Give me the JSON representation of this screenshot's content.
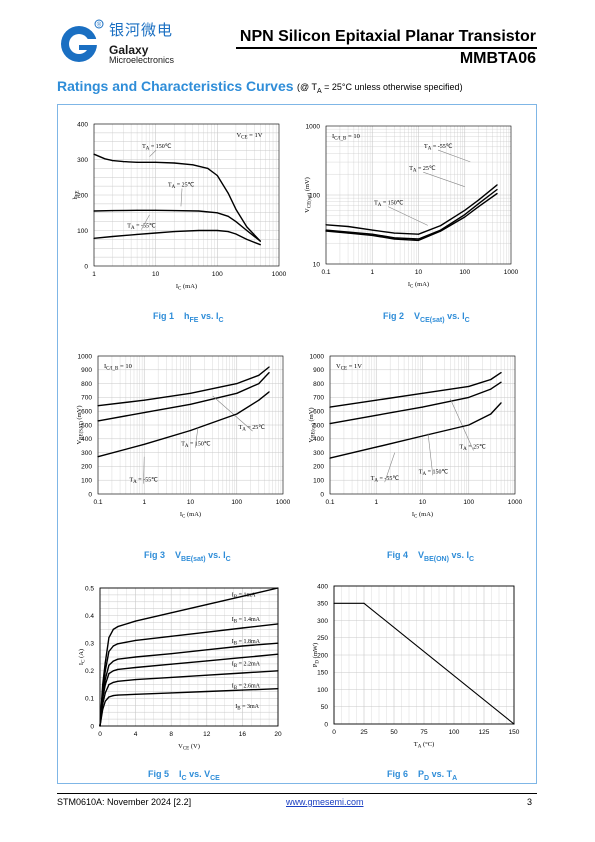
{
  "header": {
    "logo_cn": "银河微电",
    "logo_en_line1": "Galaxy",
    "logo_en_line2": "Microelectronics",
    "registered": "®",
    "title": "NPN Silicon Epitaxial Planar Transistor",
    "part_number": "MMBTA06"
  },
  "section": {
    "title": "Ratings and Characteristics Curves",
    "note_pre": "(@ T",
    "note_sub": "A",
    "note_post": " = 25°C unless otherwise specified)"
  },
  "captions": {
    "fig1": {
      "num": "Fig 1",
      "main": "h",
      "sub": "FE",
      "tail": " vs. I",
      "tail_sub": "C"
    },
    "fig2": {
      "num": "Fig 2",
      "main": "V",
      "sub": "CE(sat)",
      "tail": " vs. I",
      "tail_sub": "C"
    },
    "fig3": {
      "num": "Fig 3",
      "main": "V",
      "sub": "BE(sat)",
      "tail": " vs. I",
      "tail_sub": "C"
    },
    "fig4": {
      "num": "Fig 4",
      "main": "V",
      "sub": "BE(ON)",
      "tail": " vs. I",
      "tail_sub": "C"
    },
    "fig5": {
      "num": "Fig 5",
      "main": "I",
      "sub": "C",
      "tail": " vs. V",
      "tail_sub": "CE"
    },
    "fig6": {
      "num": "Fig 6",
      "main": "P",
      "sub": "D",
      "tail": " vs. T",
      "tail_sub": "A"
    }
  },
  "footer": {
    "doc_code": "STM0610A: November 2024 [2.2]",
    "url": "www.gmesemi.com",
    "page": "3"
  },
  "colors": {
    "accent": "#2f8dd8",
    "frame": "#7fb6e6",
    "curve": "#000000",
    "grid": "#c8c8c8"
  },
  "chart_data": [
    {
      "type": "line",
      "xscale": "log",
      "xlim": [
        1,
        1000
      ],
      "xticks": [
        "1",
        "10",
        "100",
        "1000"
      ],
      "ylim": [
        0,
        400
      ],
      "yticks": [
        "0",
        "100",
        "200",
        "300",
        "400"
      ],
      "xlabel": "I_C (mA)",
      "ylabel": "h_FE",
      "note": "V_CE = 1V",
      "grid": true,
      "series": [
        {
          "name": "T_A = 150℃",
          "x": [
            1,
            1.5,
            2,
            3,
            5,
            10,
            20,
            40,
            70,
            100,
            150,
            200,
            300,
            500
          ],
          "y": [
            315,
            302,
            297,
            294,
            292,
            292,
            290,
            285,
            275,
            255,
            205,
            160,
            110,
            70
          ]
        },
        {
          "name": "T_A = 25℃",
          "x": [
            1,
            2,
            5,
            10,
            20,
            50,
            100,
            150,
            200,
            300,
            500
          ],
          "y": [
            155,
            156,
            157,
            157,
            156,
            155,
            150,
            140,
            125,
            100,
            70
          ]
        },
        {
          "name": "T_A = -55℃",
          "x": [
            1,
            2,
            5,
            10,
            20,
            50,
            100,
            150,
            200,
            300,
            500
          ],
          "y": [
            78,
            83,
            89,
            93,
            97,
            100,
            100,
            97,
            90,
            75,
            60
          ]
        }
      ]
    },
    {
      "type": "line",
      "xscale": "log",
      "xlim": [
        0.1,
        1000
      ],
      "xticks": [
        "0.1",
        "1",
        "10",
        "100",
        "1000"
      ],
      "yscale": "log",
      "ylim": [
        10,
        1000
      ],
      "yticks": [
        "10",
        "100",
        "1000"
      ],
      "xlabel": "I_C (mA)",
      "ylabel": "V_CE(sat) (mV)",
      "note": "I_C/I_B = 10",
      "grid": true,
      "series": [
        {
          "name": "T_A = -55℃",
          "x": [
            0.1,
            0.3,
            1,
            3,
            10,
            30,
            100,
            200,
            500
          ],
          "y": [
            37,
            35,
            31,
            28,
            27,
            36,
            60,
            85,
            140
          ]
        },
        {
          "name": "T_A = 25℃",
          "x": [
            0.1,
            0.3,
            1,
            3,
            10,
            30,
            100,
            200,
            500
          ],
          "y": [
            31,
            29,
            27,
            24,
            23,
            31,
            52,
            75,
            120
          ]
        },
        {
          "name": "T_A = 150℃",
          "x": [
            0.1,
            0.3,
            1,
            3,
            10,
            30,
            100,
            200,
            500
          ],
          "y": [
            30,
            28,
            26,
            23,
            22,
            30,
            48,
            68,
            105
          ]
        }
      ]
    },
    {
      "type": "line",
      "xscale": "log",
      "xlim": [
        0.1,
        1000
      ],
      "xticks": [
        "0.1",
        "1",
        "10",
        "100",
        "1000"
      ],
      "ylim": [
        0,
        1000
      ],
      "yticks": [
        "0",
        "100",
        "200",
        "300",
        "400",
        "500",
        "600",
        "700",
        "800",
        "900",
        "1000"
      ],
      "xlabel": "I_C (mA)",
      "ylabel": "V_BE(SAT) (mV)",
      "note": "I_C/I_B = 10",
      "grid": true,
      "series": [
        {
          "name": "T_A = -55℃",
          "x": [
            0.1,
            1,
            10,
            100,
            300,
            500
          ],
          "y": [
            640,
            680,
            730,
            800,
            860,
            920
          ]
        },
        {
          "name": "T_A = 25℃",
          "x": [
            0.1,
            1,
            10,
            100,
            300,
            500
          ],
          "y": [
            530,
            590,
            650,
            730,
            800,
            880
          ]
        },
        {
          "name": "T_A = 150℃",
          "x": [
            0.1,
            1,
            10,
            100,
            300,
            500
          ],
          "y": [
            270,
            360,
            460,
            580,
            680,
            740
          ]
        }
      ]
    },
    {
      "type": "line",
      "xscale": "log",
      "xlim": [
        0.1,
        1000
      ],
      "xticks": [
        "0.1",
        "1",
        "10",
        "100",
        "1000"
      ],
      "ylim": [
        0,
        1000
      ],
      "yticks": [
        "0",
        "100",
        "200",
        "300",
        "400",
        "500",
        "600",
        "700",
        "800",
        "900",
        "1000"
      ],
      "xlabel": "I_C (mA)",
      "ylabel": "V_BE(on) (mV)",
      "note": "V_CE = 1V",
      "grid": true,
      "series": [
        {
          "name": "T_A = -55℃",
          "x": [
            0.1,
            1,
            10,
            100,
            300,
            500
          ],
          "y": [
            630,
            680,
            730,
            780,
            830,
            880
          ]
        },
        {
          "name": "T_A = 25℃",
          "x": [
            0.1,
            1,
            10,
            100,
            300,
            500
          ],
          "y": [
            510,
            570,
            630,
            700,
            760,
            810
          ]
        },
        {
          "name": "T_A = 150℃",
          "x": [
            0.1,
            1,
            10,
            100,
            300,
            500
          ],
          "y": [
            260,
            340,
            420,
            500,
            580,
            660
          ]
        }
      ]
    },
    {
      "type": "line",
      "xlim": [
        0,
        20
      ],
      "xticks": [
        "0",
        "4",
        "8",
        "12",
        "16",
        "20"
      ],
      "ylim": [
        0,
        0.5
      ],
      "yticks": [
        "0",
        "0.1",
        "0.2",
        "0.3",
        "0.4",
        "0.5"
      ],
      "xlabel": "V_CE (V)",
      "ylabel": "I_C (A)",
      "grid": true,
      "series": [
        {
          "name": "I_B = 1mA",
          "x": [
            0,
            0.3,
            0.6,
            1,
            1.5,
            2,
            4,
            8,
            12,
            16,
            20
          ],
          "y": [
            0,
            0.06,
            0.09,
            0.105,
            0.11,
            0.112,
            0.115,
            0.12,
            0.125,
            0.13,
            0.135
          ]
        },
        {
          "name": "I_B = 1.4mA",
          "x": [
            0,
            0.3,
            0.6,
            1,
            1.5,
            2,
            4,
            8,
            12,
            16,
            20
          ],
          "y": [
            0,
            0.08,
            0.12,
            0.15,
            0.158,
            0.162,
            0.168,
            0.176,
            0.184,
            0.192,
            0.2
          ]
        },
        {
          "name": "I_B = 1.8mA",
          "x": [
            0,
            0.3,
            0.6,
            1,
            1.5,
            2,
            4,
            8,
            12,
            16,
            20
          ],
          "y": [
            0,
            0.1,
            0.15,
            0.19,
            0.2,
            0.205,
            0.212,
            0.224,
            0.236,
            0.248,
            0.26
          ]
        },
        {
          "name": "I_B = 2.2mA",
          "x": [
            0,
            0.3,
            0.6,
            1,
            1.5,
            2,
            4,
            8,
            12,
            16,
            20
          ],
          "y": [
            0,
            0.11,
            0.17,
            0.22,
            0.235,
            0.242,
            0.25,
            0.262,
            0.276,
            0.29,
            0.3
          ]
        },
        {
          "name": "I_B = 2.6mA",
          "x": [
            0,
            0.3,
            0.6,
            1,
            1.5,
            2,
            4,
            8,
            12,
            16,
            20
          ],
          "y": [
            0,
            0.13,
            0.2,
            0.27,
            0.29,
            0.298,
            0.31,
            0.325,
            0.34,
            0.355,
            0.37
          ]
        },
        {
          "name": "I_B = 3mA",
          "x": [
            0,
            0.3,
            0.6,
            1,
            1.5,
            2,
            4,
            8,
            12,
            16,
            20
          ],
          "y": [
            0,
            0.15,
            0.23,
            0.32,
            0.35,
            0.36,
            0.38,
            0.41,
            0.44,
            0.47,
            0.5
          ]
        }
      ]
    },
    {
      "type": "line",
      "xlim": [
        0,
        150
      ],
      "xticks": [
        "0",
        "25",
        "50",
        "75",
        "100",
        "125",
        "150"
      ],
      "ylim": [
        0,
        400
      ],
      "yticks": [
        "0",
        "50",
        "100",
        "150",
        "200",
        "250",
        "300",
        "350",
        "400"
      ],
      "xlabel": "T_A (°C)",
      "ylabel": "P_D (mW)",
      "grid": true,
      "series": [
        {
          "name": "P_D",
          "x": [
            0,
            25,
            150
          ],
          "y": [
            350,
            350,
            0
          ]
        }
      ]
    }
  ]
}
